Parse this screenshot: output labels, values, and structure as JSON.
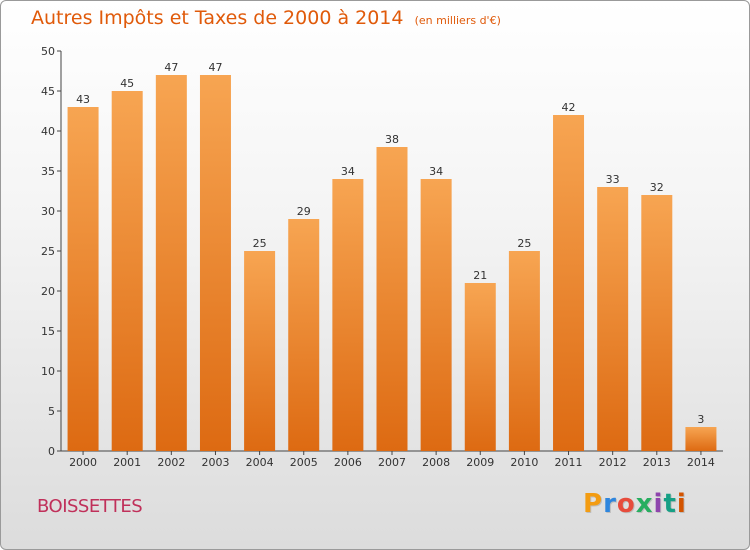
{
  "header": {
    "title": "Autres Impôts et Taxes de 2000 à 2014",
    "unit": "(en milliers d'€)"
  },
  "footer": {
    "commune": "BOISSETTES",
    "brand": "Proxiti"
  },
  "colors": {
    "bar_top": "#f7a552",
    "bar_bottom": "#dd6a12",
    "title": "#e05a0a",
    "commune": "#c0305a"
  },
  "chart_data": {
    "type": "bar",
    "categories": [
      "2000",
      "2001",
      "2002",
      "2003",
      "2004",
      "2005",
      "2006",
      "2007",
      "2008",
      "2009",
      "2010",
      "2011",
      "2012",
      "2013",
      "2014"
    ],
    "values": [
      43,
      45,
      47,
      47,
      25,
      29,
      34,
      38,
      34,
      21,
      25,
      42,
      33,
      32,
      3
    ],
    "title": "Autres Impôts et Taxes de 2000 à 2014",
    "subtitle": "(en milliers d'€)",
    "xlabel": "",
    "ylabel": "",
    "ylim": [
      0,
      50
    ],
    "yticks": [
      0,
      5,
      10,
      15,
      20,
      25,
      30,
      35,
      40,
      45,
      50
    ],
    "grid": false,
    "data_labels": true
  }
}
